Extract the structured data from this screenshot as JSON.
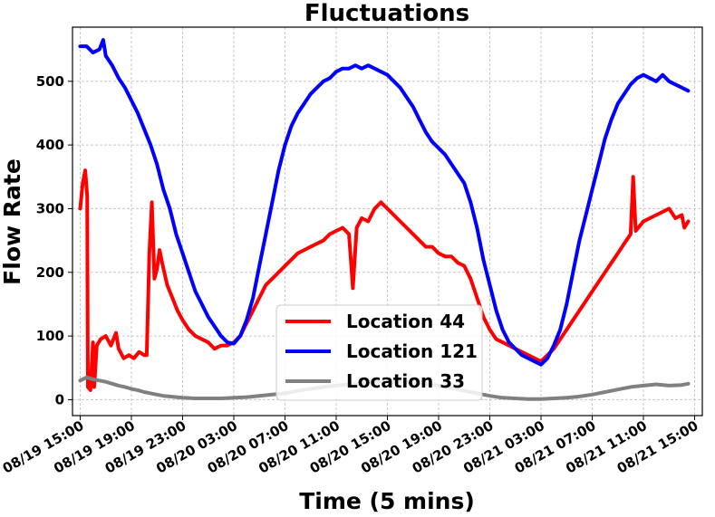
{
  "chart_data": {
    "type": "line",
    "title": "Fluctuations",
    "xlabel": "Time (5 mins)",
    "ylabel": "Flow Rate",
    "xlim": [
      -0.6,
      48.6
    ],
    "ylim": [
      -25,
      585
    ],
    "x_unit": "hours from 08/19 15:00",
    "grid": true,
    "legend_position": "lower-center",
    "x_ticks": [
      {
        "x": 0,
        "label": "08/19 15:00"
      },
      {
        "x": 4,
        "label": "08/19 19:00"
      },
      {
        "x": 8,
        "label": "08/19 23:00"
      },
      {
        "x": 12,
        "label": "08/20 03:00"
      },
      {
        "x": 16,
        "label": "08/20 07:00"
      },
      {
        "x": 20,
        "label": "08/20 11:00"
      },
      {
        "x": 24,
        "label": "08/20 15:00"
      },
      {
        "x": 28,
        "label": "08/20 19:00"
      },
      {
        "x": 32,
        "label": "08/20 23:00"
      },
      {
        "x": 36,
        "label": "08/21 03:00"
      },
      {
        "x": 40,
        "label": "08/21 07:00"
      },
      {
        "x": 44,
        "label": "08/21 11:00"
      },
      {
        "x": 48,
        "label": "08/21 15:00"
      }
    ],
    "y_ticks": [
      0,
      100,
      200,
      300,
      400,
      500
    ],
    "series": [
      {
        "name": "Location 44",
        "color": "#ff0000",
        "points": [
          [
            0,
            300
          ],
          [
            0.2,
            340
          ],
          [
            0.4,
            360
          ],
          [
            0.55,
            320
          ],
          [
            0.6,
            20
          ],
          [
            0.8,
            15
          ],
          [
            1.0,
            90
          ],
          [
            1.1,
            20
          ],
          [
            1.3,
            85
          ],
          [
            1.6,
            95
          ],
          [
            2.0,
            100
          ],
          [
            2.4,
            85
          ],
          [
            2.8,
            105
          ],
          [
            3.0,
            80
          ],
          [
            3.4,
            65
          ],
          [
            3.8,
            70
          ],
          [
            4.2,
            65
          ],
          [
            4.6,
            75
          ],
          [
            5.0,
            70
          ],
          [
            5.2,
            70
          ],
          [
            5.4,
            230
          ],
          [
            5.6,
            310
          ],
          [
            5.8,
            190
          ],
          [
            6.0,
            205
          ],
          [
            6.2,
            235
          ],
          [
            6.4,
            215
          ],
          [
            6.8,
            180
          ],
          [
            7.2,
            160
          ],
          [
            7.6,
            140
          ],
          [
            8.0,
            125
          ],
          [
            8.5,
            110
          ],
          [
            9.0,
            100
          ],
          [
            9.5,
            95
          ],
          [
            10,
            90
          ],
          [
            10.5,
            80
          ],
          [
            11,
            85
          ],
          [
            11.5,
            85
          ],
          [
            12,
            90
          ],
          [
            12.5,
            100
          ],
          [
            13,
            120
          ],
          [
            13.5,
            140
          ],
          [
            14,
            160
          ],
          [
            14.5,
            180
          ],
          [
            15,
            190
          ],
          [
            15.5,
            200
          ],
          [
            16,
            210
          ],
          [
            16.5,
            220
          ],
          [
            17,
            230
          ],
          [
            17.5,
            235
          ],
          [
            18,
            240
          ],
          [
            18.5,
            245
          ],
          [
            19,
            250
          ],
          [
            19.5,
            260
          ],
          [
            20,
            265
          ],
          [
            20.5,
            270
          ],
          [
            21,
            260
          ],
          [
            21.3,
            175
          ],
          [
            21.6,
            270
          ],
          [
            22,
            285
          ],
          [
            22.5,
            280
          ],
          [
            23,
            300
          ],
          [
            23.5,
            310
          ],
          [
            24,
            300
          ],
          [
            24.5,
            290
          ],
          [
            25,
            280
          ],
          [
            25.5,
            270
          ],
          [
            26,
            260
          ],
          [
            26.5,
            250
          ],
          [
            27,
            240
          ],
          [
            27.5,
            240
          ],
          [
            28,
            230
          ],
          [
            28.5,
            225
          ],
          [
            29,
            225
          ],
          [
            29.5,
            215
          ],
          [
            30,
            210
          ],
          [
            30.5,
            190
          ],
          [
            31,
            160
          ],
          [
            31.5,
            130
          ],
          [
            32,
            110
          ],
          [
            32.5,
            95
          ],
          [
            33,
            90
          ],
          [
            33.5,
            85
          ],
          [
            34,
            80
          ],
          [
            34.5,
            75
          ],
          [
            35,
            70
          ],
          [
            35.5,
            65
          ],
          [
            36,
            60
          ],
          [
            36.5,
            70
          ],
          [
            37,
            80
          ],
          [
            37.5,
            95
          ],
          [
            38,
            110
          ],
          [
            38.5,
            125
          ],
          [
            39,
            140
          ],
          [
            39.5,
            155
          ],
          [
            40,
            170
          ],
          [
            40.5,
            185
          ],
          [
            41,
            200
          ],
          [
            41.5,
            215
          ],
          [
            42,
            230
          ],
          [
            42.5,
            245
          ],
          [
            43,
            260
          ],
          [
            43.2,
            350
          ],
          [
            43.4,
            265
          ],
          [
            43.8,
            275
          ],
          [
            44,
            280
          ],
          [
            44.5,
            285
          ],
          [
            45,
            290
          ],
          [
            45.5,
            295
          ],
          [
            46,
            300
          ],
          [
            46.5,
            285
          ],
          [
            47,
            290
          ],
          [
            47.2,
            270
          ],
          [
            47.5,
            280
          ]
        ]
      },
      {
        "name": "Location 121",
        "color": "#0000ff",
        "points": [
          [
            0,
            555
          ],
          [
            0.5,
            555
          ],
          [
            1.0,
            545
          ],
          [
            1.5,
            550
          ],
          [
            1.8,
            565
          ],
          [
            2.0,
            540
          ],
          [
            2.5,
            525
          ],
          [
            3.0,
            505
          ],
          [
            3.5,
            490
          ],
          [
            4.0,
            470
          ],
          [
            4.5,
            450
          ],
          [
            5.0,
            425
          ],
          [
            5.5,
            400
          ],
          [
            6.0,
            370
          ],
          [
            6.5,
            330
          ],
          [
            7.0,
            300
          ],
          [
            7.5,
            260
          ],
          [
            8.0,
            230
          ],
          [
            8.5,
            200
          ],
          [
            9.0,
            170
          ],
          [
            9.5,
            150
          ],
          [
            10,
            130
          ],
          [
            10.5,
            115
          ],
          [
            11,
            100
          ],
          [
            11.5,
            90
          ],
          [
            12,
            88
          ],
          [
            12.5,
            100
          ],
          [
            13,
            125
          ],
          [
            13.5,
            160
          ],
          [
            14,
            210
          ],
          [
            14.5,
            260
          ],
          [
            15,
            310
          ],
          [
            15.5,
            360
          ],
          [
            16,
            400
          ],
          [
            16.5,
            430
          ],
          [
            17,
            450
          ],
          [
            17.5,
            465
          ],
          [
            18,
            480
          ],
          [
            18.5,
            490
          ],
          [
            19,
            500
          ],
          [
            19.5,
            505
          ],
          [
            20,
            515
          ],
          [
            20.5,
            520
          ],
          [
            21,
            520
          ],
          [
            21.5,
            525
          ],
          [
            22,
            520
          ],
          [
            22.5,
            525
          ],
          [
            23,
            520
          ],
          [
            23.5,
            515
          ],
          [
            24,
            510
          ],
          [
            24.5,
            500
          ],
          [
            25,
            490
          ],
          [
            25.5,
            475
          ],
          [
            26,
            460
          ],
          [
            26.5,
            440
          ],
          [
            27,
            420
          ],
          [
            27.5,
            405
          ],
          [
            28,
            395
          ],
          [
            28.5,
            385
          ],
          [
            29,
            370
          ],
          [
            29.5,
            355
          ],
          [
            30,
            340
          ],
          [
            30.5,
            310
          ],
          [
            31,
            270
          ],
          [
            31.5,
            220
          ],
          [
            32,
            180
          ],
          [
            32.5,
            140
          ],
          [
            33,
            110
          ],
          [
            33.5,
            90
          ],
          [
            34,
            80
          ],
          [
            34.5,
            70
          ],
          [
            35,
            65
          ],
          [
            35.5,
            60
          ],
          [
            36,
            55
          ],
          [
            36.5,
            65
          ],
          [
            37,
            85
          ],
          [
            37.5,
            110
          ],
          [
            38,
            150
          ],
          [
            38.5,
            200
          ],
          [
            39,
            250
          ],
          [
            39.5,
            290
          ],
          [
            40,
            330
          ],
          [
            40.5,
            370
          ],
          [
            41,
            410
          ],
          [
            41.5,
            440
          ],
          [
            42,
            465
          ],
          [
            42.5,
            480
          ],
          [
            43,
            495
          ],
          [
            43.5,
            505
          ],
          [
            44,
            510
          ],
          [
            44.5,
            505
          ],
          [
            45,
            500
          ],
          [
            45.5,
            510
          ],
          [
            46,
            500
          ],
          [
            46.5,
            495
          ],
          [
            47,
            490
          ],
          [
            47.5,
            485
          ]
        ]
      },
      {
        "name": "Location 33",
        "color": "#808080",
        "points": [
          [
            0,
            30
          ],
          [
            0.5,
            35
          ],
          [
            1.0,
            32
          ],
          [
            1.5,
            30
          ],
          [
            2.0,
            28
          ],
          [
            2.5,
            25
          ],
          [
            3.0,
            22
          ],
          [
            3.5,
            20
          ],
          [
            4.0,
            17
          ],
          [
            4.5,
            15
          ],
          [
            5.0,
            12
          ],
          [
            5.5,
            10
          ],
          [
            6.0,
            8
          ],
          [
            6.5,
            6
          ],
          [
            7.0,
            5
          ],
          [
            7.5,
            4
          ],
          [
            8.0,
            3
          ],
          [
            9,
            2
          ],
          [
            10,
            2
          ],
          [
            11,
            2
          ],
          [
            12,
            3
          ],
          [
            13,
            4
          ],
          [
            14,
            6
          ],
          [
            15,
            8
          ],
          [
            16,
            10
          ],
          [
            17,
            14
          ],
          [
            18,
            17
          ],
          [
            19,
            20
          ],
          [
            20,
            22
          ],
          [
            21,
            24
          ],
          [
            22,
            26
          ],
          [
            23,
            28
          ],
          [
            24,
            28
          ],
          [
            25,
            28
          ],
          [
            26,
            27
          ],
          [
            27,
            25
          ],
          [
            28,
            22
          ],
          [
            29,
            18
          ],
          [
            30,
            14
          ],
          [
            31,
            10
          ],
          [
            32,
            6
          ],
          [
            33,
            3
          ],
          [
            34,
            2
          ],
          [
            35,
            1
          ],
          [
            36,
            1
          ],
          [
            37,
            2
          ],
          [
            38,
            3
          ],
          [
            39,
            5
          ],
          [
            40,
            8
          ],
          [
            41,
            12
          ],
          [
            42,
            16
          ],
          [
            43,
            20
          ],
          [
            44,
            22
          ],
          [
            45,
            24
          ],
          [
            46,
            22
          ],
          [
            47,
            23
          ],
          [
            47.5,
            25
          ]
        ]
      }
    ]
  }
}
